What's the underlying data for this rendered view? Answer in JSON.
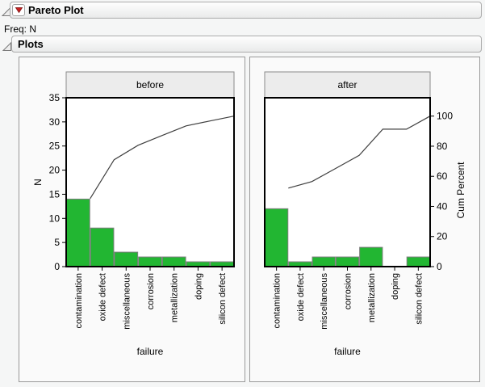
{
  "report": {
    "root_title": "Pareto Plot",
    "freq_label": "Freq: N",
    "plots_title": "Plots"
  },
  "colors": {
    "bar_fill": "#22b632",
    "bar_border": "#7d7d7d",
    "cum_line": "#3f3f3f",
    "panel_header_bg": "#ececec",
    "panel_header_border": "#8a8a8a",
    "frame_border": "#000000",
    "red_triangle": "#c82121"
  },
  "chart_data": {
    "type": "bar",
    "subtype": "pareto",
    "xlabel": "failure",
    "ylabel_left": "N",
    "ylabel_right": "Cum Percent",
    "ylim_left": [
      0,
      35
    ],
    "ylim_right_percent": [
      0,
      100
    ],
    "y_left_ticks": [
      0,
      5,
      10,
      15,
      20,
      25,
      30,
      35
    ],
    "y_right_ticks": [
      0,
      20,
      40,
      60,
      80,
      100
    ],
    "categories": [
      "contamination",
      "oxide defect",
      "miscellaneous",
      "corrosion",
      "metallization",
      "doping",
      "silicon defect"
    ],
    "panels": [
      {
        "label": "before",
        "values": [
          14,
          8,
          3,
          2,
          2,
          1,
          1
        ],
        "total": 31,
        "cum_percent": [
          45.2,
          71.0,
          80.6,
          87.1,
          93.5,
          96.8,
          100
        ]
      },
      {
        "label": "after",
        "values": [
          12,
          1,
          2,
          2,
          4,
          0,
          2
        ],
        "total": 23,
        "cum_percent": [
          52.2,
          56.5,
          65.2,
          73.9,
          91.3,
          91.3,
          100
        ]
      }
    ],
    "grid": false,
    "legend": "none"
  }
}
